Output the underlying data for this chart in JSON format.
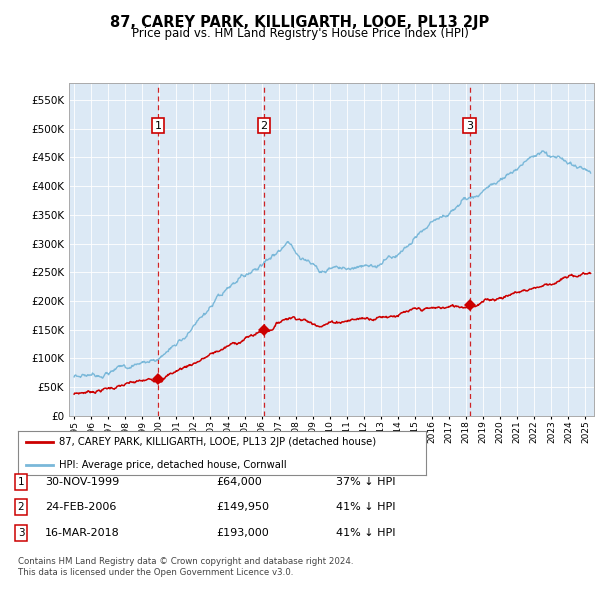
{
  "title": "87, CAREY PARK, KILLIGARTH, LOOE, PL13 2JP",
  "subtitle": "Price paid vs. HM Land Registry's House Price Index (HPI)",
  "bg_color": "#dce9f5",
  "hpi_color": "#7ab8d9",
  "price_color": "#cc0000",
  "marker_color": "#cc0000",
  "dashed_line_color": "#cc0000",
  "ylim": [
    0,
    580000
  ],
  "yticks": [
    0,
    50000,
    100000,
    150000,
    200000,
    250000,
    300000,
    350000,
    400000,
    450000,
    500000,
    550000
  ],
  "ytick_labels": [
    "£0",
    "£50K",
    "£100K",
    "£150K",
    "£200K",
    "£250K",
    "£300K",
    "£350K",
    "£400K",
    "£450K",
    "£500K",
    "£550K"
  ],
  "xmin": 1994.7,
  "xmax": 2025.5,
  "sale_dates": [
    1999.917,
    2006.146,
    2018.208
  ],
  "sale_prices": [
    64000,
    149950,
    193000
  ],
  "sale_labels": [
    "1",
    "2",
    "3"
  ],
  "legend_entries": [
    "87, CAREY PARK, KILLIGARTH, LOOE, PL13 2JP (detached house)",
    "HPI: Average price, detached house, Cornwall"
  ],
  "table_rows": [
    [
      "1",
      "30-NOV-1999",
      "£64,000",
      "37% ↓ HPI"
    ],
    [
      "2",
      "24-FEB-2006",
      "£149,950",
      "41% ↓ HPI"
    ],
    [
      "3",
      "16-MAR-2018",
      "£193,000",
      "41% ↓ HPI"
    ]
  ],
  "footnote1": "Contains HM Land Registry data © Crown copyright and database right 2024.",
  "footnote2": "This data is licensed under the Open Government Licence v3.0."
}
